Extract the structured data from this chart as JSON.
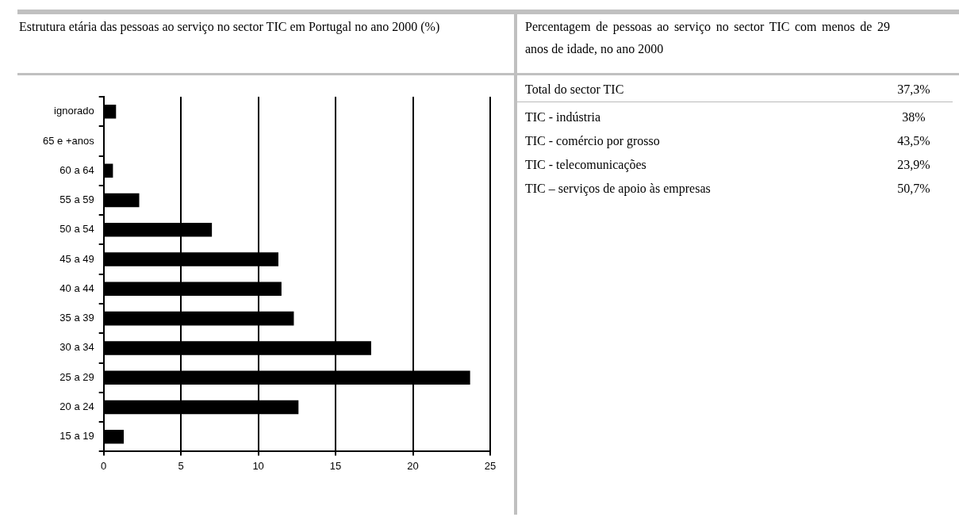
{
  "chart_data": [
    {
      "type": "bar",
      "orientation": "horizontal",
      "title": "Estrutura etária das pessoas ao serviço no sector TIC em Portugal no ano 2000 (%)",
      "categories": [
        "ignorado",
        "65 e +anos",
        "60 a 64",
        "55 a 59",
        "50 a 54",
        "45 a 49",
        "40 a 44",
        "35 a 39",
        "30 a 34",
        "25 a 29",
        "20 a 24",
        "15 a 19"
      ],
      "values": [
        0.8,
        0,
        0.6,
        2.3,
        7.0,
        11.3,
        11.5,
        12.3,
        17.3,
        23.7,
        12.6,
        1.3
      ],
      "color": "#000000",
      "xlim": [
        0,
        25
      ],
      "xticks": [
        0,
        5,
        10,
        15,
        20,
        25
      ],
      "grid": "x",
      "legend": false
    },
    {
      "type": "other",
      "title": "Percentagem de pessoas ao serviço no sector TIC com menos de 29 anos de idade, no ano 2000",
      "categories": [
        "Total do sector TIC",
        "TIC - indústria",
        "TIC  - comércio por grosso",
        "TIC - telecomunicações",
        "TIC – serviços de apoio às empresas"
      ],
      "value_labels": [
        "37,3%",
        "38%",
        "43,5%",
        "23,9%",
        "50,7%"
      ]
    }
  ]
}
